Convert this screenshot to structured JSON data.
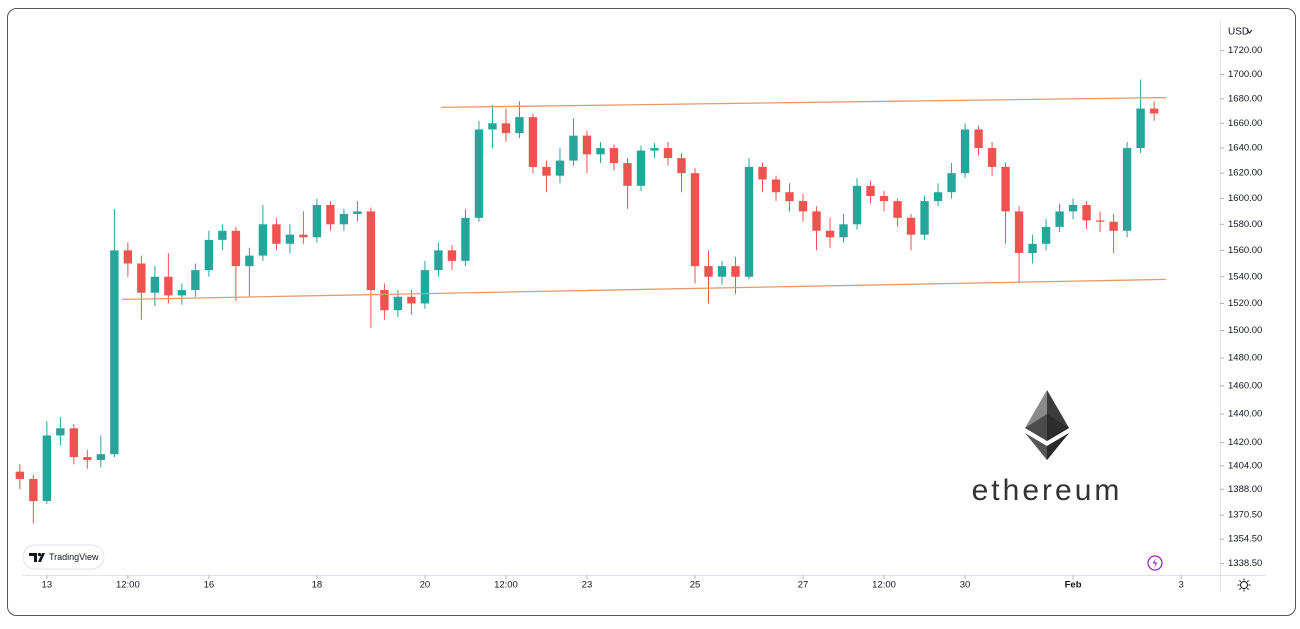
{
  "chart_data": {
    "type": "candlestick",
    "currency": "USD",
    "brand": "TradingView",
    "watermark": "ethereum",
    "log_scale": true,
    "up_color": "#26a69a",
    "down_color": "#ef5350",
    "xlim": [
      -0.46,
      21.72
    ],
    "ylim": [
      1331,
      1746
    ],
    "yticks": [
      {
        "value": 1720,
        "label": "1720.00"
      },
      {
        "value": 1700,
        "label": "1700.00"
      },
      {
        "value": 1680,
        "label": "1680.00"
      },
      {
        "value": 1660,
        "label": "1660.00"
      },
      {
        "value": 1640,
        "label": "1640.00"
      },
      {
        "value": 1620,
        "label": "1620.00"
      },
      {
        "value": 1600,
        "label": "1600.00"
      },
      {
        "value": 1580,
        "label": "1580.00"
      },
      {
        "value": 1560,
        "label": "1560.00"
      },
      {
        "value": 1540,
        "label": "1540.00"
      },
      {
        "value": 1520,
        "label": "1520.00"
      },
      {
        "value": 1500,
        "label": "1500.00"
      },
      {
        "value": 1480,
        "label": "1480.00"
      },
      {
        "value": 1460,
        "label": "1460.00"
      },
      {
        "value": 1440,
        "label": "1440.00"
      },
      {
        "value": 1420,
        "label": "1420.00"
      },
      {
        "value": 1404,
        "label": "1404.00"
      },
      {
        "value": 1388,
        "label": "1388.00"
      },
      {
        "value": 1370.5,
        "label": "1370.50"
      },
      {
        "value": 1354.5,
        "label": "1354.50"
      },
      {
        "value": 1338.5,
        "label": "1338.50"
      }
    ],
    "xticks": [
      {
        "value": 0,
        "label": "13"
      },
      {
        "value": 1.5,
        "label": "12:00"
      },
      {
        "value": 3,
        "label": "16"
      },
      {
        "value": 5,
        "label": "18"
      },
      {
        "value": 7,
        "label": "20"
      },
      {
        "value": 8.5,
        "label": "12:00"
      },
      {
        "value": 10,
        "label": "23"
      },
      {
        "value": 12,
        "label": "25"
      },
      {
        "value": 14,
        "label": "27"
      },
      {
        "value": 15.5,
        "label": "12:00"
      },
      {
        "value": 17,
        "label": "30"
      },
      {
        "value": 19,
        "label": "Feb"
      },
      {
        "value": 21,
        "label": "3"
      }
    ],
    "x": [
      -0.5,
      -0.25,
      0,
      0.25,
      0.5,
      0.75,
      1,
      1.25,
      1.5,
      1.75,
      2,
      2.25,
      2.5,
      2.75,
      3,
      3.25,
      3.5,
      3.75,
      4,
      4.25,
      4.5,
      4.75,
      5,
      5.25,
      5.5,
      5.75,
      6,
      6.25,
      6.5,
      6.75,
      7,
      7.25,
      7.5,
      7.75,
      8,
      8.25,
      8.5,
      8.75,
      9,
      9.25,
      9.5,
      9.75,
      10,
      10.25,
      10.5,
      10.75,
      11,
      11.25,
      11.5,
      11.75,
      12,
      12.25,
      12.5,
      12.75,
      13,
      13.25,
      13.5,
      13.75,
      14,
      14.25,
      14.5,
      14.75,
      15,
      15.25,
      15.5,
      15.75,
      16,
      16.25,
      16.5,
      16.75,
      17,
      17.25,
      17.5,
      17.75,
      18,
      18.25,
      18.5,
      18.75,
      19,
      19.25,
      19.5,
      19.75,
      20,
      20.25,
      20.5
    ],
    "open": [
      1400,
      1395,
      1380,
      1425,
      1430,
      1410,
      1408,
      1412,
      1560,
      1550,
      1528,
      1540,
      1526,
      1530,
      1545,
      1568,
      1575,
      1548,
      1556,
      1580,
      1565,
      1572,
      1570,
      1595,
      1580,
      1588,
      1590,
      1530,
      1515,
      1525,
      1520,
      1545,
      1560,
      1552,
      1585,
      1655,
      1660,
      1652,
      1665,
      1625,
      1618,
      1630,
      1650,
      1635,
      1640,
      1628,
      1610,
      1638,
      1640,
      1632,
      1620,
      1548,
      1540,
      1548,
      1540,
      1625,
      1615,
      1605,
      1598,
      1590,
      1575,
      1570,
      1580,
      1610,
      1602,
      1598,
      1585,
      1572,
      1598,
      1605,
      1620,
      1655,
      1640,
      1625,
      1590,
      1558,
      1565,
      1578,
      1590,
      1595,
      1583,
      1582,
      1575,
      1640,
      1672
    ],
    "high": [
      1405,
      1398,
      1435,
      1438,
      1433,
      1415,
      1425,
      1592,
      1566,
      1556,
      1548,
      1558,
      1535,
      1550,
      1575,
      1580,
      1578,
      1562,
      1595,
      1585,
      1580,
      1590,
      1600,
      1598,
      1592,
      1598,
      1593,
      1535,
      1530,
      1530,
      1552,
      1566,
      1564,
      1592,
      1662,
      1675,
      1672,
      1678,
      1668,
      1630,
      1640,
      1664,
      1654,
      1645,
      1643,
      1632,
      1642,
      1644,
      1645,
      1636,
      1624,
      1560,
      1552,
      1555,
      1632,
      1628,
      1618,
      1612,
      1604,
      1594,
      1585,
      1588,
      1616,
      1614,
      1606,
      1600,
      1588,
      1602,
      1612,
      1628,
      1660,
      1658,
      1645,
      1628,
      1594,
      1572,
      1584,
      1596,
      1600,
      1598,
      1590,
      1588,
      1645,
      1696,
      1678
    ],
    "low": [
      1388,
      1365,
      1378,
      1418,
      1405,
      1402,
      1403,
      1410,
      1540,
      1508,
      1518,
      1520,
      1519,
      1525,
      1540,
      1560,
      1522,
      1525,
      1552,
      1560,
      1558,
      1565,
      1566,
      1575,
      1575,
      1582,
      1502,
      1508,
      1510,
      1512,
      1516,
      1540,
      1545,
      1548,
      1582,
      1640,
      1645,
      1648,
      1620,
      1605,
      1612,
      1626,
      1620,
      1628,
      1622,
      1592,
      1606,
      1632,
      1626,
      1605,
      1535,
      1520,
      1534,
      1527,
      1538,
      1605,
      1598,
      1590,
      1582,
      1560,
      1562,
      1566,
      1576,
      1596,
      1590,
      1578,
      1560,
      1568,
      1594,
      1600,
      1616,
      1634,
      1618,
      1565,
      1536,
      1550,
      1560,
      1574,
      1584,
      1576,
      1574,
      1558,
      1570,
      1636,
      1662
    ],
    "close": [
      1395,
      1380,
      1425,
      1430,
      1410,
      1408,
      1412,
      1560,
      1550,
      1528,
      1540,
      1526,
      1530,
      1545,
      1568,
      1575,
      1548,
      1556,
      1580,
      1565,
      1572,
      1570,
      1595,
      1580,
      1588,
      1590,
      1530,
      1515,
      1525,
      1520,
      1545,
      1560,
      1552,
      1585,
      1655,
      1660,
      1652,
      1665,
      1625,
      1618,
      1630,
      1650,
      1635,
      1640,
      1628,
      1610,
      1638,
      1640,
      1632,
      1620,
      1548,
      1540,
      1548,
      1540,
      1625,
      1615,
      1605,
      1598,
      1590,
      1575,
      1570,
      1580,
      1610,
      1602,
      1598,
      1585,
      1572,
      1598,
      1605,
      1620,
      1655,
      1640,
      1625,
      1590,
      1558,
      1565,
      1578,
      1590,
      1595,
      1583,
      1582,
      1575,
      1640,
      1672,
      1668
    ],
    "lines": [
      {
        "color": "#e59a6a",
        "x": [
          7.3,
          20.72
        ],
        "y": [
          1673,
          1681
        ]
      },
      {
        "color": "#e59a6a",
        "x": [
          1.39,
          20.72
        ],
        "y": [
          1523,
          1538
        ]
      }
    ]
  }
}
